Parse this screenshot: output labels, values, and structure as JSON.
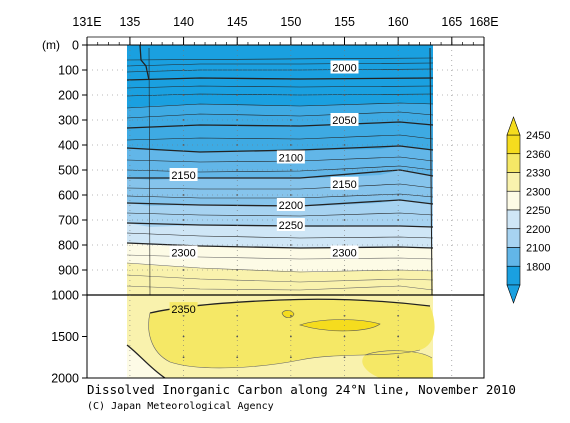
{
  "chart_data": {
    "type": "heatmap",
    "title": "Dissolved Inorganic Carbon along 24°N line, November 2010",
    "credit": "(C) Japan Meteorological Agency",
    "x_ticks": [
      "131E",
      "135",
      "140",
      "145",
      "150",
      "155",
      "160",
      "165",
      "168E"
    ],
    "x_tick_values": [
      131,
      135,
      140,
      145,
      150,
      155,
      160,
      165,
      168
    ],
    "xlim": [
      131,
      168
    ],
    "data_xlim": [
      136,
      163
    ],
    "y_unit_label": "(m)",
    "y_ticks_upper": [
      "0",
      "100",
      "200",
      "300",
      "400",
      "500",
      "600",
      "700",
      "800",
      "900",
      "1000"
    ],
    "y_ticks_lower": [
      "1500",
      "2000"
    ],
    "ylim_upper": [
      0,
      1000
    ],
    "ylim_lower": [
      1000,
      2000
    ],
    "colorbar": {
      "labels": [
        "2450",
        "2360",
        "2330",
        "2300",
        "2250",
        "2200",
        "2100",
        "1800"
      ],
      "colors": [
        "#f5dc1e",
        "#f5e866",
        "#f9f2ad",
        "#fdfbe6",
        "#cfe6f6",
        "#a7d3f1",
        "#62b6e8",
        "#1aa0e0"
      ]
    },
    "contour_labels": [
      {
        "text": "2000",
        "x": 155,
        "depth": 90
      },
      {
        "text": "2050",
        "x": 155,
        "depth": 300
      },
      {
        "text": "2100",
        "x": 150,
        "depth": 450
      },
      {
        "text": "2150",
        "x": 140,
        "depth": 520
      },
      {
        "text": "2150",
        "x": 155,
        "depth": 555
      },
      {
        "text": "2200",
        "x": 150,
        "depth": 640
      },
      {
        "text": "2250",
        "x": 150,
        "depth": 720
      },
      {
        "text": "2300",
        "x": 140,
        "depth": 830
      },
      {
        "text": "2300",
        "x": 155,
        "depth": 830
      },
      {
        "text": "2350",
        "x": 140,
        "depth": 1170
      }
    ]
  }
}
